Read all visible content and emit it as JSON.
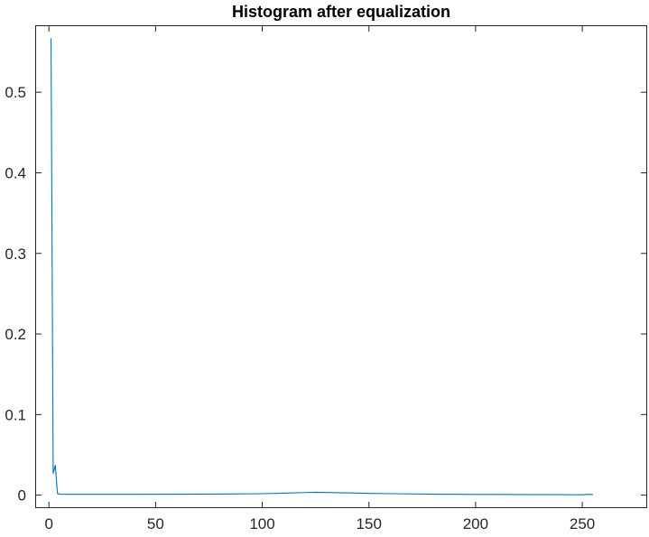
{
  "chart_data": {
    "type": "line",
    "title": "Histogram after equalization",
    "xlabel": "",
    "ylabel": "",
    "xlim": [
      -6,
      280
    ],
    "ylim": [
      -0.015,
      0.582
    ],
    "xticks": [
      0,
      50,
      100,
      150,
      200,
      250
    ],
    "yticks": [
      0,
      0.1,
      0.2,
      0.3,
      0.4,
      0.5
    ],
    "xtick_labels": [
      "0",
      "50",
      "100",
      "150",
      "200",
      "250"
    ],
    "ytick_labels": [
      "0",
      "0.1",
      "0.2",
      "0.3",
      "0.4",
      "0.5"
    ],
    "grid": false,
    "legend": "none",
    "series": [
      {
        "color": "#0072bd",
        "x": [
          1,
          2,
          3,
          4,
          5,
          10,
          20,
          40,
          60,
          80,
          100,
          110,
          120,
          125,
          130,
          140,
          150,
          160,
          180,
          200,
          220,
          240,
          250,
          253,
          255
        ],
        "y": [
          0.567,
          0.027,
          0.037,
          0.002,
          0.0012,
          0.001,
          0.001,
          0.001,
          0.0012,
          0.0013,
          0.0018,
          0.0024,
          0.0032,
          0.0036,
          0.0033,
          0.0028,
          0.0022,
          0.0018,
          0.0012,
          0.0009,
          0.0007,
          0.0006,
          0.0005,
          0.001,
          0.0006
        ]
      }
    ]
  }
}
